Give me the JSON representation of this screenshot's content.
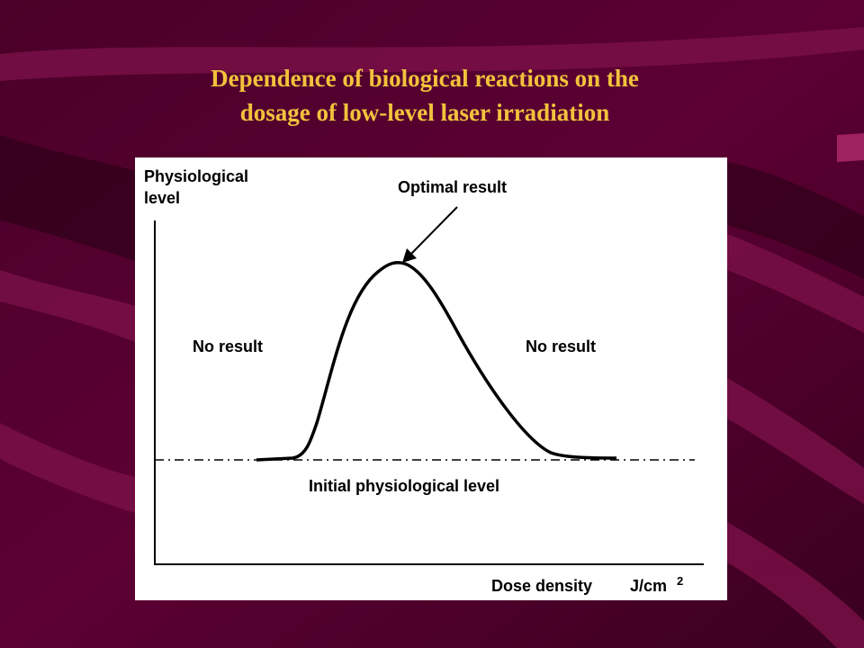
{
  "title": {
    "lines": [
      "Dependence of biological reactions on the",
      "dosage of low-level laser irradiation"
    ]
  },
  "diagram": {
    "y_axis_label": [
      "Physiological",
      "level"
    ],
    "peak_label": "Optimal result",
    "left_label": "No result",
    "right_label": "No result",
    "baseline_label": "Initial physiological level",
    "x_axis_label": "Dose density",
    "x_axis_unit": "J/cm",
    "x_axis_unit_exponent": "2"
  }
}
